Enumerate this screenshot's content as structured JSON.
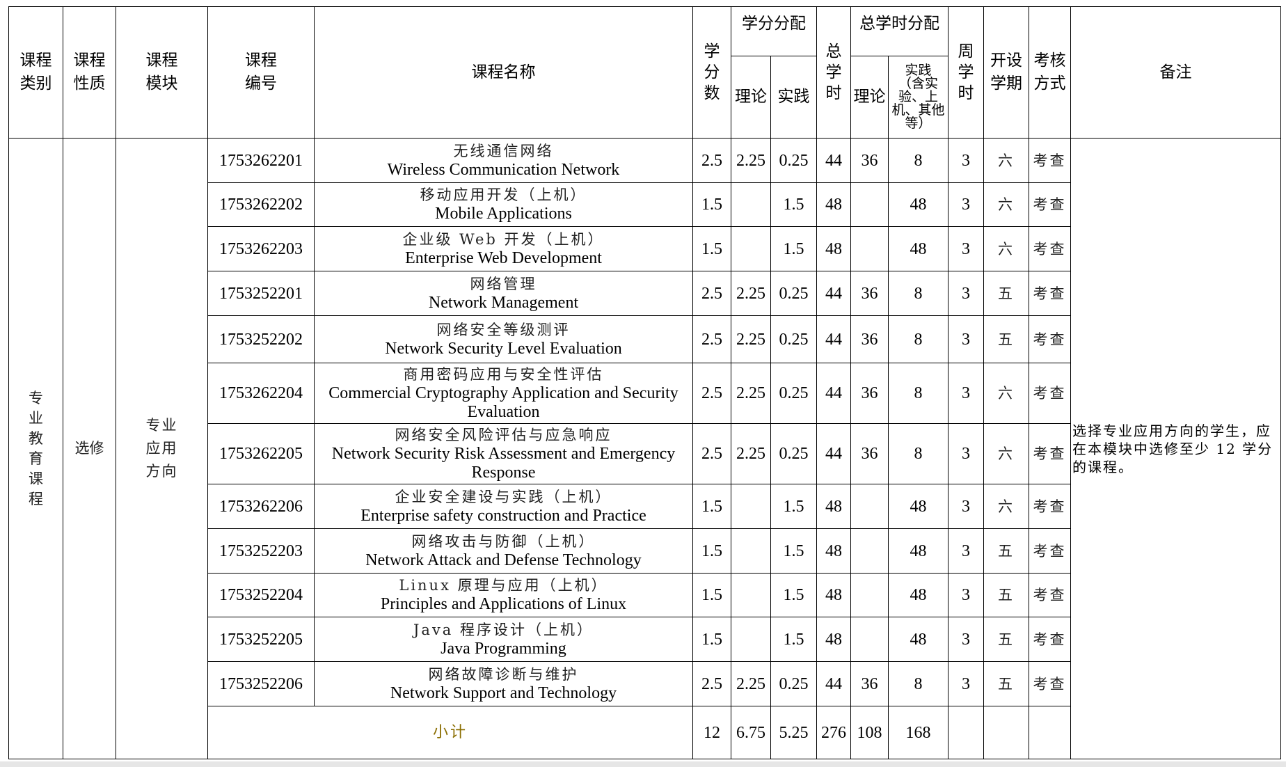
{
  "headers": {
    "category": "课程\n类别",
    "nature": "课程\n性质",
    "module": "课程\n模块",
    "code": "课程\n编号",
    "name": "课程名称",
    "credits": "学\n分\n数",
    "credit_dist": "学分分配",
    "credit_theory": "理论",
    "credit_practice": "实践",
    "total_hours": "总\n学\n时",
    "hours_dist": "总学时分配",
    "hours_theory": "理论",
    "hours_practice": "实践\n（含实\n验、上\n机、其他\n等）",
    "weekly_hours": "周\n学\n时",
    "semester": "开设\n学期",
    "assessment": "考核\n方式",
    "remarks": "备注"
  },
  "group": {
    "category": "专\n业\n教\n育\n课\n程",
    "nature": "选修",
    "module": "专业\n应用\n方向",
    "remarks": "选择专业应用方向的学生，应在本模块中选修至少 12 学分的课程。"
  },
  "rows": [
    {
      "code": "1753262201",
      "name_zh": "无线通信网络",
      "name_en": "Wireless Communication Network",
      "credits": "2.5",
      "credit_theory": "2.25",
      "credit_practice": "0.25",
      "total_hours": "44",
      "hours_theory": "36",
      "hours_practice": "8",
      "weekly_hours": "3",
      "semester": "六",
      "assessment": "考查"
    },
    {
      "code": "1753262202",
      "name_zh": "移动应用开发（上机）",
      "name_en": "Mobile Applications",
      "credits": "1.5",
      "credit_theory": "",
      "credit_practice": "1.5",
      "total_hours": "48",
      "hours_theory": "",
      "hours_practice": "48",
      "weekly_hours": "3",
      "semester": "六",
      "assessment": "考查"
    },
    {
      "code": "1753262203",
      "name_zh": "企业级 Web 开发（上机）",
      "name_en": "Enterprise Web Development",
      "credits": "1.5",
      "credit_theory": "",
      "credit_practice": "1.5",
      "total_hours": "48",
      "hours_theory": "",
      "hours_practice": "48",
      "weekly_hours": "3",
      "semester": "六",
      "assessment": "考查"
    },
    {
      "code": "1753252201",
      "name_zh": "网络管理",
      "name_en": "Network Management",
      "credits": "2.5",
      "credit_theory": "2.25",
      "credit_practice": "0.25",
      "total_hours": "44",
      "hours_theory": "36",
      "hours_practice": "8",
      "weekly_hours": "3",
      "semester": "五",
      "assessment": "考查"
    },
    {
      "code": "1753252202",
      "name_zh": "网络安全等级测评",
      "name_en": "Network Security Level Evaluation",
      "credits": "2.5",
      "credit_theory": "2.25",
      "credit_practice": "0.25",
      "total_hours": "44",
      "hours_theory": "36",
      "hours_practice": "8",
      "weekly_hours": "3",
      "semester": "五",
      "assessment": "考查"
    },
    {
      "code": "1753262204",
      "name_zh": "商用密码应用与安全性评估",
      "name_en": "Commercial Cryptography Application and Security Evaluation",
      "credits": "2.5",
      "credit_theory": "2.25",
      "credit_practice": "0.25",
      "total_hours": "44",
      "hours_theory": "36",
      "hours_practice": "8",
      "weekly_hours": "3",
      "semester": "六",
      "assessment": "考查"
    },
    {
      "code": "1753262205",
      "name_zh": "网络安全风险评估与应急响应",
      "name_en": "Network Security Risk Assessment and Emergency Response",
      "credits": "2.5",
      "credit_theory": "2.25",
      "credit_practice": "0.25",
      "total_hours": "44",
      "hours_theory": "36",
      "hours_practice": "8",
      "weekly_hours": "3",
      "semester": "六",
      "assessment": "考查"
    },
    {
      "code": "1753262206",
      "name_zh": "企业安全建设与实践（上机）",
      "name_en": "Enterprise safety construction and Practice",
      "credits": "1.5",
      "credit_theory": "",
      "credit_practice": "1.5",
      "total_hours": "48",
      "hours_theory": "",
      "hours_practice": "48",
      "weekly_hours": "3",
      "semester": "六",
      "assessment": "考查"
    },
    {
      "code": "1753252203",
      "name_zh": "网络攻击与防御（上机）",
      "name_en": "Network Attack and Defense Technology",
      "credits": "1.5",
      "credit_theory": "",
      "credit_practice": "1.5",
      "total_hours": "48",
      "hours_theory": "",
      "hours_practice": "48",
      "weekly_hours": "3",
      "semester": "五",
      "assessment": "考查"
    },
    {
      "code": "1753252204",
      "name_zh": "Linux 原理与应用（上机）",
      "name_en": "Principles and Applications of Linux",
      "credits": "1.5",
      "credit_theory": "",
      "credit_practice": "1.5",
      "total_hours": "48",
      "hours_theory": "",
      "hours_practice": "48",
      "weekly_hours": "3",
      "semester": "五",
      "assessment": "考查"
    },
    {
      "code": "1753252205",
      "name_zh": "Java 程序设计（上机）",
      "name_en": "Java Programming",
      "credits": "1.5",
      "credit_theory": "",
      "credit_practice": "1.5",
      "total_hours": "48",
      "hours_theory": "",
      "hours_practice": "48",
      "weekly_hours": "3",
      "semester": "五",
      "assessment": "考查"
    },
    {
      "code": "1753252206",
      "name_zh": "网络故障诊断与维护",
      "name_en": "Network Support and Technology",
      "credits": "2.5",
      "credit_theory": "2.25",
      "credit_practice": "0.25",
      "total_hours": "44",
      "hours_theory": "36",
      "hours_practice": "8",
      "weekly_hours": "3",
      "semester": "五",
      "assessment": "考查"
    }
  ],
  "subtotal": {
    "label": "小计",
    "credits": "12",
    "credit_theory": "6.75",
    "credit_practice": "5.25",
    "total_hours": "276",
    "hours_theory": "108",
    "hours_practice": "168"
  }
}
